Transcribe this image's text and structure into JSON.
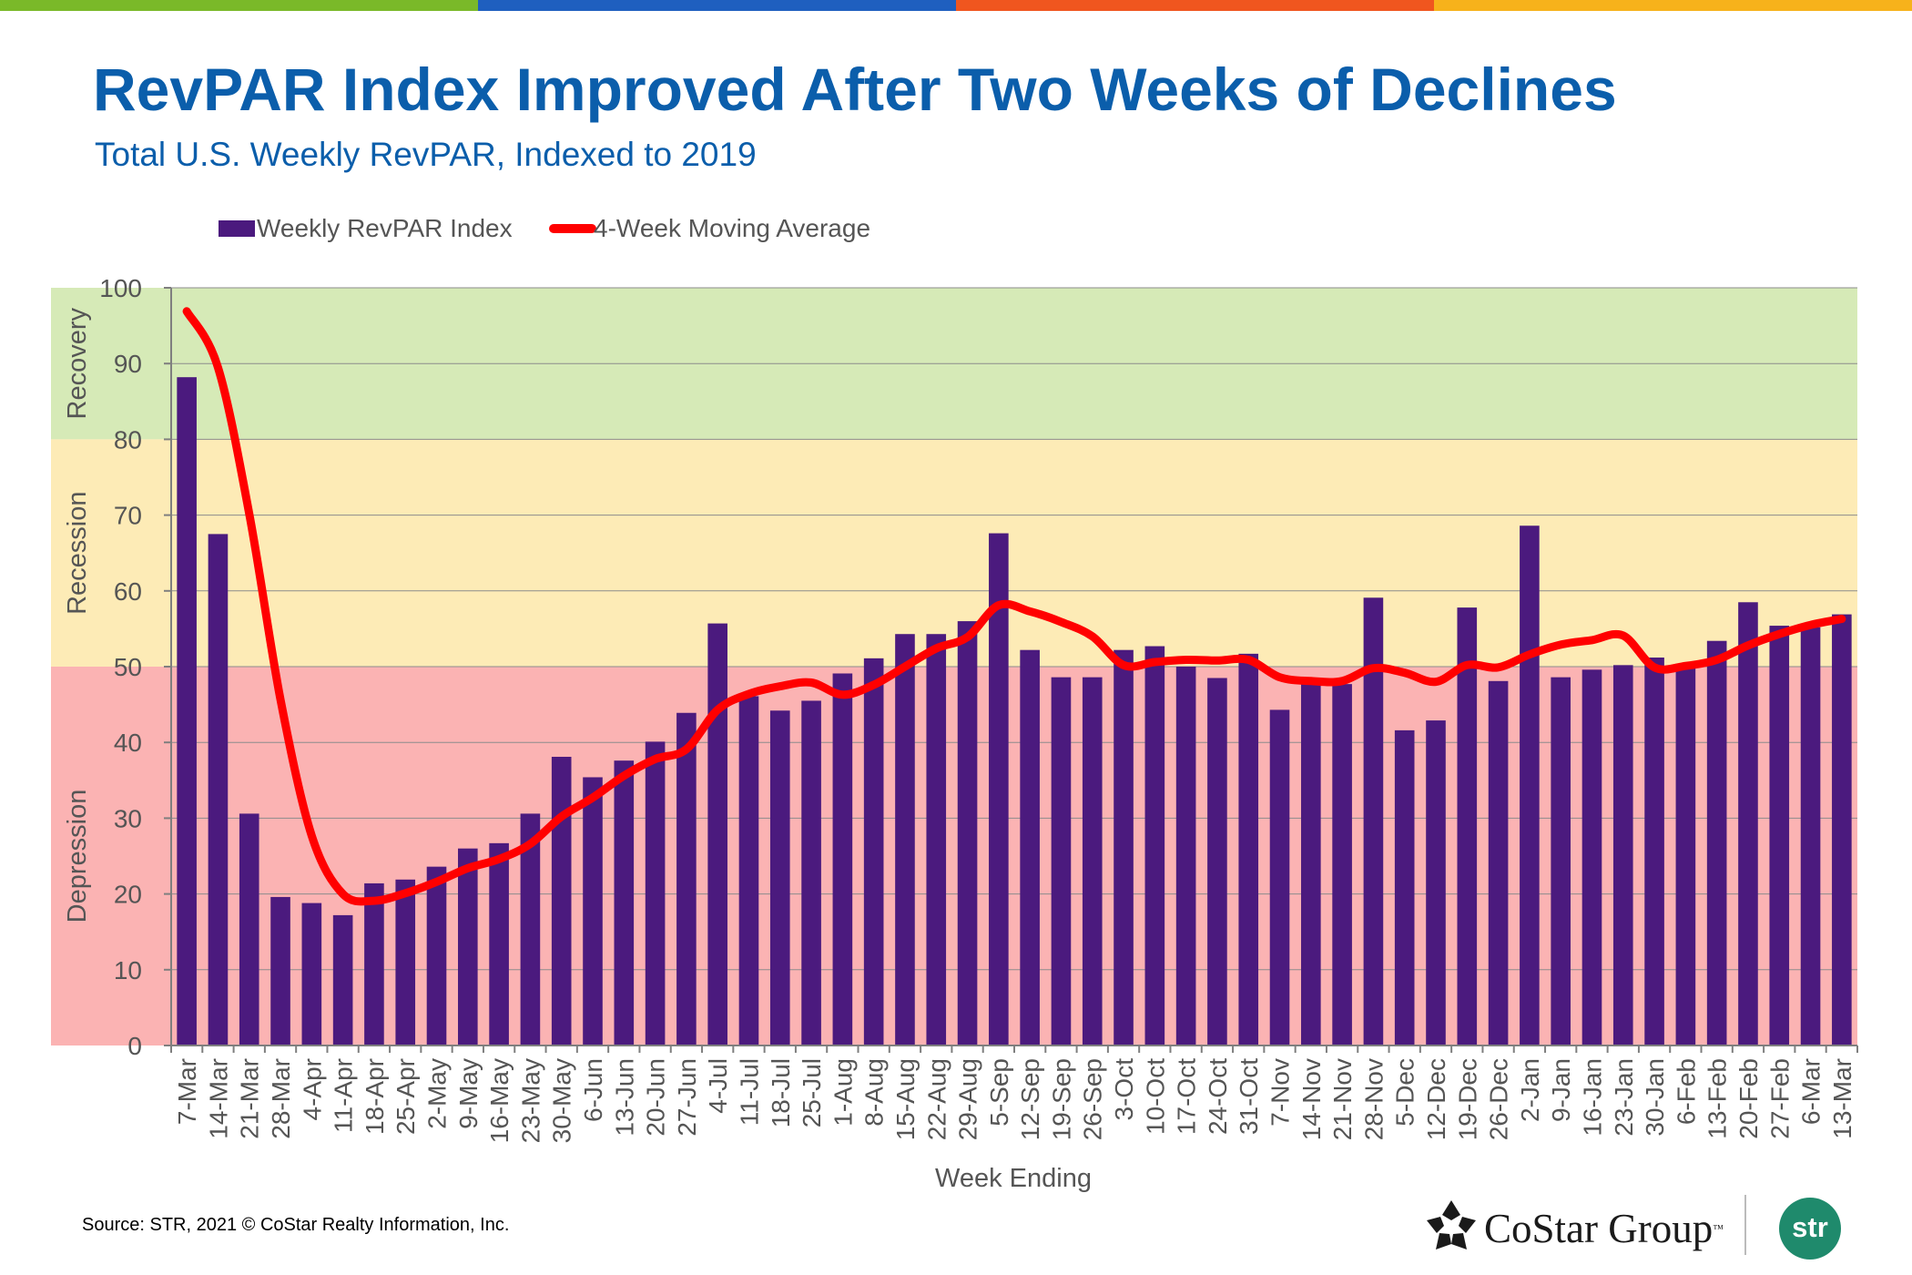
{
  "stripe_colors": [
    "#7ab929",
    "#1f5fbf",
    "#f0561f",
    "#f7b21b"
  ],
  "title": "RevPAR Index Improved After Two Weeks of Declines",
  "subtitle": "Total U.S. Weekly RevPAR, Indexed to 2019",
  "source": "Source: STR, 2021 © CoStar Realty Information, Inc.",
  "logos": {
    "costar": "CoStar Group",
    "costar_tm": "™",
    "str": "str"
  },
  "colors": {
    "title": "#0b5eab",
    "bar": "#4b1a7e",
    "line": "#ff0000",
    "zone_recovery": "#d6eab7",
    "zone_recession": "#fdebb6",
    "zone_depression": "#fbb3b3",
    "grid": "#8c8c8c",
    "text": "#555555"
  },
  "chart_data": {
    "type": "bar",
    "xlabel": "Week Ending",
    "ylabel": "",
    "ylim": [
      0,
      100
    ],
    "yticks": [
      0,
      10,
      20,
      30,
      40,
      50,
      60,
      70,
      80,
      90,
      100
    ],
    "legend_position": "top-left",
    "grid": true,
    "zones": [
      {
        "label": "Recovery",
        "from": 80,
        "to": 100,
        "color": "#d6eab7"
      },
      {
        "label": "Recession",
        "from": 50,
        "to": 80,
        "color": "#fdebb6"
      },
      {
        "label": "Depression",
        "from": 0,
        "to": 50,
        "color": "#fbb3b3"
      }
    ],
    "categories": [
      "7-Mar",
      "14-Mar",
      "21-Mar",
      "28-Mar",
      "4-Apr",
      "11-Apr",
      "18-Apr",
      "25-Apr",
      "2-May",
      "9-May",
      "16-May",
      "23-May",
      "30-May",
      "6-Jun",
      "13-Jun",
      "20-Jun",
      "27-Jun",
      "4-Jul",
      "11-Jul",
      "18-Jul",
      "25-Jul",
      "1-Aug",
      "8-Aug",
      "15-Aug",
      "22-Aug",
      "29-Aug",
      "5-Sep",
      "12-Sep",
      "19-Sep",
      "26-Sep",
      "3-Oct",
      "10-Oct",
      "17-Oct",
      "24-Oct",
      "31-Oct",
      "7-Nov",
      "14-Nov",
      "21-Nov",
      "28-Nov",
      "5-Dec",
      "12-Dec",
      "19-Dec",
      "26-Dec",
      "2-Jan",
      "9-Jan",
      "16-Jan",
      "23-Jan",
      "30-Jan",
      "6-Feb",
      "13-Feb",
      "20-Feb",
      "27-Feb",
      "6-Mar",
      "13-Mar"
    ],
    "series": [
      {
        "name": "Weekly RevPAR Index",
        "type": "bar",
        "color": "#4b1a7e",
        "values": [
          88.2,
          67.5,
          30.6,
          19.6,
          18.8,
          17.2,
          21.4,
          21.9,
          23.6,
          26.0,
          26.7,
          30.6,
          38.1,
          35.4,
          37.6,
          40.1,
          43.9,
          55.7,
          46.1,
          44.2,
          45.5,
          49.1,
          51.1,
          54.3,
          54.3,
          56.0,
          67.6,
          52.2,
          48.6,
          48.6,
          52.2,
          52.7,
          50.0,
          48.5,
          51.7,
          44.3,
          47.7,
          47.7,
          59.1,
          41.6,
          42.9,
          57.8,
          48.1,
          68.6,
          48.6,
          49.6,
          50.2,
          51.2,
          50.4,
          53.4,
          58.5,
          55.4,
          55.2,
          56.9
        ]
      },
      {
        "name": "4-Week Moving Average",
        "type": "line",
        "color": "#ff0000",
        "values": [
          96.9,
          89.5,
          70.2,
          45.7,
          27.7,
          20.0,
          19.1,
          20.1,
          21.6,
          23.4,
          24.6,
          26.6,
          30.2,
          32.7,
          35.6,
          37.8,
          39.1,
          44.3,
          46.4,
          47.4,
          47.9,
          46.3,
          47.6,
          50.0,
          52.4,
          53.9,
          58.1,
          57.3,
          55.9,
          54.0,
          50.2,
          50.6,
          50.9,
          50.8,
          50.9,
          48.6,
          48.1,
          48.1,
          49.8,
          49.2,
          48.0,
          50.2,
          49.9,
          51.6,
          52.9,
          53.5,
          54.1,
          49.9,
          50.1,
          50.9,
          52.8,
          54.3,
          55.5,
          56.3
        ]
      }
    ]
  }
}
